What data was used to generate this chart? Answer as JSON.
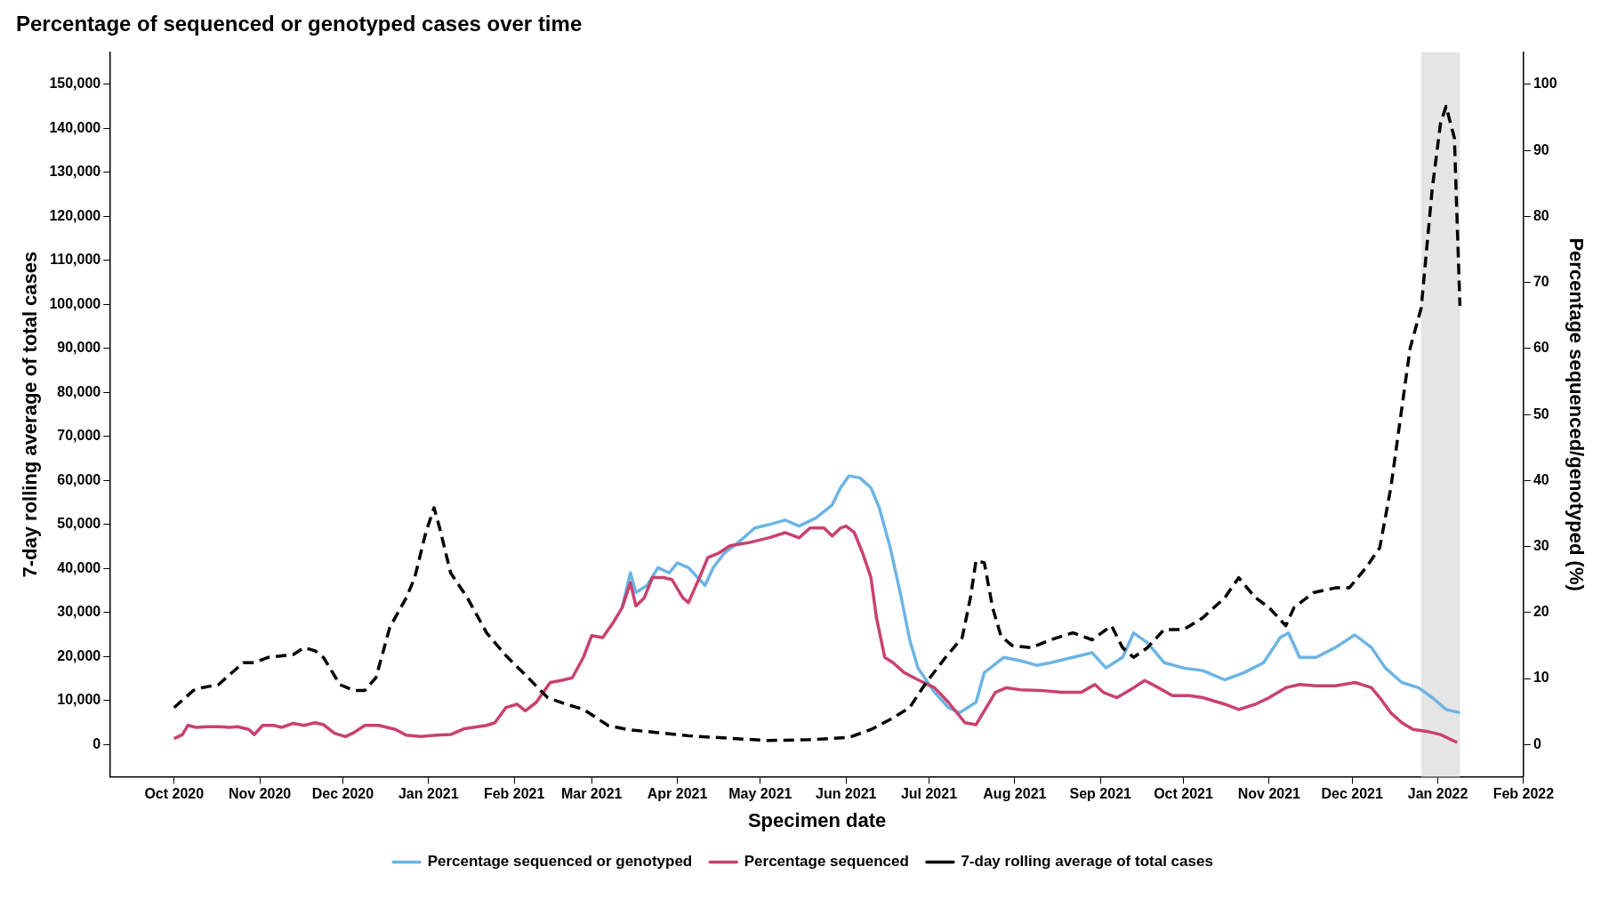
{
  "chart_data": {
    "type": "line",
    "title": "Percentage of sequenced or genotyped cases over time",
    "xlabel": "Specimen date",
    "ylabel": "7-day rolling average of total cases",
    "y2label": "Percentage sequenced/genotyped (%)",
    "xlim": [
      "2020-09-08",
      "2022-02-01"
    ],
    "xticks": [
      {
        "value": "2020-10-01",
        "label": "Oct 2020"
      },
      {
        "value": "2020-11-01",
        "label": "Nov 2020"
      },
      {
        "value": "2020-12-01",
        "label": "Dec 2020"
      },
      {
        "value": "2021-01-01",
        "label": "Jan 2021"
      },
      {
        "value": "2021-02-01",
        "label": "Feb 2021"
      },
      {
        "value": "2021-03-01",
        "label": "Mar 2021"
      },
      {
        "value": "2021-04-01",
        "label": "Apr 2021"
      },
      {
        "value": "2021-05-01",
        "label": "May 2021"
      },
      {
        "value": "2021-06-01",
        "label": "Jun 2021"
      },
      {
        "value": "2021-07-01",
        "label": "Jul 2021"
      },
      {
        "value": "2021-08-01",
        "label": "Aug 2021"
      },
      {
        "value": "2021-09-01",
        "label": "Sep 2021"
      },
      {
        "value": "2021-10-01",
        "label": "Oct 2021"
      },
      {
        "value": "2021-11-01",
        "label": "Nov 2021"
      },
      {
        "value": "2021-12-01",
        "label": "Dec 2021"
      },
      {
        "value": "2022-01-01",
        "label": "Jan 2022"
      },
      {
        "value": "2022-02-01",
        "label": "Feb 2022"
      }
    ],
    "ylim": [
      -7300,
      157300
    ],
    "yticks": [
      0,
      {
        "value": 10000,
        "label": "10,000"
      },
      {
        "value": 20000,
        "label": "20,000"
      },
      {
        "value": 30000,
        "label": "30,000"
      },
      {
        "value": 40000,
        "label": "40,000"
      },
      {
        "value": 50000,
        "label": "50,000"
      },
      {
        "value": 60000,
        "label": "60,000"
      },
      {
        "value": 70000,
        "label": "70,000"
      },
      {
        "value": 80000,
        "label": "80,000"
      },
      {
        "value": 90000,
        "label": "90,000"
      },
      {
        "value": 100000,
        "label": "100,000"
      },
      {
        "value": 110000,
        "label": "110,000"
      },
      {
        "value": 120000,
        "label": "120,000"
      },
      {
        "value": 130000,
        "label": "130,000"
      },
      {
        "value": 140000,
        "label": "140,000"
      },
      {
        "value": 150000,
        "label": "150,000"
      }
    ],
    "y2lim": [
      -4.87,
      104.87
    ],
    "y2ticks": [
      0,
      10,
      20,
      30,
      40,
      50,
      60,
      70,
      80,
      90,
      100
    ],
    "grid": false,
    "legend": "bottom",
    "marker": "none",
    "bands": [
      {
        "axis": "x",
        "from": "2021-12-26",
        "to": "2022-01-09",
        "color": "#e5e5e5"
      }
    ],
    "series": [
      {
        "name": "Percentage sequenced or genotyped",
        "color": "#6cb4e4",
        "axis": "y2",
        "line_style": "solid",
        "x": [
          "2021-03-12",
          "2021-03-15",
          "2021-03-17",
          "2021-03-21",
          "2021-03-25",
          "2021-03-29",
          "2021-04-01",
          "2021-04-05",
          "2021-04-11",
          "2021-04-14",
          "2021-04-18",
          "2021-04-23",
          "2021-04-29",
          "2021-05-04",
          "2021-05-10",
          "2021-05-15",
          "2021-05-21",
          "2021-05-27",
          "2021-05-30",
          "2021-06-02",
          "2021-06-06",
          "2021-06-10",
          "2021-06-13",
          "2021-06-17",
          "2021-06-21",
          "2021-06-24",
          "2021-06-27",
          "2021-07-03",
          "2021-07-08",
          "2021-07-12",
          "2021-07-18",
          "2021-07-21",
          "2021-07-28",
          "2021-08-03",
          "2021-08-09",
          "2021-08-14",
          "2021-08-22",
          "2021-08-29",
          "2021-09-03",
          "2021-09-09",
          "2021-09-13",
          "2021-09-18",
          "2021-09-24",
          "2021-10-01",
          "2021-10-08",
          "2021-10-16",
          "2021-10-23",
          "2021-10-30",
          "2021-11-05",
          "2021-11-08",
          "2021-11-12",
          "2021-11-18",
          "2021-11-25",
          "2021-12-02",
          "2021-12-08",
          "2021-12-13",
          "2021-12-19",
          "2021-12-25",
          "2021-12-30",
          "2022-01-04",
          "2022-01-09"
        ],
        "values": [
          20.7,
          26.0,
          23.0,
          24.1,
          26.8,
          26.0,
          27.5,
          26.8,
          24.1,
          26.8,
          29.0,
          30.6,
          32.8,
          33.3,
          34.0,
          33.1,
          34.3,
          36.3,
          38.9,
          40.7,
          40.4,
          38.9,
          35.9,
          29.8,
          22.2,
          15.9,
          11.6,
          7.9,
          5.6,
          4.8,
          6.4,
          10.9,
          13.2,
          12.7,
          12.0,
          12.4,
          13.2,
          13.9,
          11.6,
          13.2,
          16.9,
          15.4,
          12.4,
          11.6,
          11.2,
          9.8,
          10.9,
          12.4,
          16.2,
          16.9,
          13.2,
          13.2,
          14.7,
          16.6,
          14.7,
          11.6,
          9.4,
          8.6,
          7.1,
          5.3,
          4.8
        ]
      },
      {
        "name": "Percentage sequenced",
        "color": "#c9416e",
        "axis": "y2",
        "line_style": "solid",
        "x": [
          "2020-10-01",
          "2020-10-04",
          "2020-10-06",
          "2020-10-09",
          "2020-10-13",
          "2020-10-17",
          "2020-10-21",
          "2020-10-24",
          "2020-10-28",
          "2020-10-30",
          "2020-11-02",
          "2020-11-06",
          "2020-11-09",
          "2020-11-13",
          "2020-11-17",
          "2020-11-21",
          "2020-11-24",
          "2020-11-28",
          "2020-12-02",
          "2020-12-05",
          "2020-12-09",
          "2020-12-14",
          "2020-12-20",
          "2020-12-24",
          "2020-12-29",
          "2021-01-04",
          "2021-01-09",
          "2021-01-14",
          "2021-01-22",
          "2021-01-25",
          "2021-01-29",
          "2021-02-02",
          "2021-02-05",
          "2021-02-09",
          "2021-02-14",
          "2021-02-18",
          "2021-02-22",
          "2021-02-26",
          "2021-03-01",
          "2021-03-05",
          "2021-03-09",
          "2021-03-12",
          "2021-03-15",
          "2021-03-17",
          "2021-03-20",
          "2021-03-23",
          "2021-03-27",
          "2021-03-30",
          "2021-04-03",
          "2021-04-05",
          "2021-04-09",
          "2021-04-12",
          "2021-04-16",
          "2021-04-20",
          "2021-04-27",
          "2021-05-04",
          "2021-05-10",
          "2021-05-15",
          "2021-05-19",
          "2021-05-24",
          "2021-05-27",
          "2021-05-30",
          "2021-06-01",
          "2021-06-04",
          "2021-06-07",
          "2021-06-10",
          "2021-06-12",
          "2021-06-15",
          "2021-06-18",
          "2021-06-22",
          "2021-06-27",
          "2021-07-03",
          "2021-07-08",
          "2021-07-14",
          "2021-07-18",
          "2021-07-21",
          "2021-07-25",
          "2021-07-29",
          "2021-08-03",
          "2021-08-10",
          "2021-08-18",
          "2021-08-25",
          "2021-08-30",
          "2021-09-02",
          "2021-09-07",
          "2021-09-13",
          "2021-09-17",
          "2021-09-22",
          "2021-09-27",
          "2021-10-03",
          "2021-10-08",
          "2021-10-16",
          "2021-10-21",
          "2021-10-27",
          "2021-11-01",
          "2021-11-07",
          "2021-11-12",
          "2021-11-18",
          "2021-11-25",
          "2021-12-02",
          "2021-12-08",
          "2021-12-11",
          "2021-12-15",
          "2021-12-19",
          "2021-12-23",
          "2021-12-28",
          "2022-01-02",
          "2022-01-08"
        ],
        "values": [
          0.9,
          1.5,
          2.9,
          2.6,
          2.7,
          2.7,
          2.6,
          2.7,
          2.3,
          1.5,
          2.9,
          2.9,
          2.6,
          3.2,
          2.9,
          3.3,
          3.0,
          1.7,
          1.2,
          1.8,
          2.9,
          2.9,
          2.3,
          1.4,
          1.2,
          1.4,
          1.5,
          2.4,
          2.9,
          3.3,
          5.6,
          6.1,
          5.1,
          6.4,
          9.4,
          9.7,
          10.1,
          13.2,
          16.5,
          16.2,
          18.6,
          20.7,
          24.5,
          21.0,
          22.2,
          25.3,
          25.3,
          25.0,
          22.2,
          21.5,
          25.3,
          28.3,
          29.0,
          30.1,
          30.6,
          31.3,
          32.1,
          31.3,
          32.8,
          32.8,
          31.6,
          32.8,
          33.1,
          32.1,
          29.0,
          25.3,
          19.2,
          13.2,
          12.4,
          10.9,
          9.8,
          8.6,
          6.4,
          3.3,
          3.0,
          5.1,
          7.9,
          8.6,
          8.3,
          8.2,
          7.9,
          7.9,
          9.1,
          7.9,
          7.1,
          8.6,
          9.7,
          8.6,
          7.4,
          7.4,
          7.1,
          6.1,
          5.3,
          6.1,
          7.1,
          8.6,
          9.1,
          8.9,
          8.9,
          9.4,
          8.6,
          7.1,
          4.8,
          3.3,
          2.3,
          2.0,
          1.5,
          0.3
        ]
      },
      {
        "name": "7-day rolling average of total cases",
        "color": "#000000",
        "line_style": "dashed",
        "x": [
          "2020-10-01",
          "2020-10-08",
          "2020-10-11",
          "2020-10-17",
          "2020-10-26",
          "2020-10-30",
          "2020-11-04",
          "2020-11-13",
          "2020-11-17",
          "2020-11-21",
          "2020-11-24",
          "2020-11-30",
          "2020-12-05",
          "2020-12-09",
          "2020-12-13",
          "2020-12-18",
          "2020-12-24",
          "2020-12-27",
          "2020-12-31",
          "2021-01-03",
          "2021-01-05",
          "2021-01-09",
          "2021-01-15",
          "2021-01-22",
          "2021-01-29",
          "2021-02-06",
          "2021-02-13",
          "2021-02-20",
          "2021-02-26",
          "2021-03-07",
          "2021-03-14",
          "2021-03-25",
          "2021-04-05",
          "2021-04-20",
          "2021-05-04",
          "2021-05-19",
          "2021-06-02",
          "2021-06-10",
          "2021-06-17",
          "2021-06-24",
          "2021-06-30",
          "2021-07-07",
          "2021-07-13",
          "2021-07-16",
          "2021-07-18",
          "2021-07-21",
          "2021-07-24",
          "2021-07-27",
          "2021-07-31",
          "2021-08-07",
          "2021-08-14",
          "2021-08-22",
          "2021-08-29",
          "2021-09-05",
          "2021-09-09",
          "2021-09-13",
          "2021-09-18",
          "2021-09-24",
          "2021-10-01",
          "2021-10-08",
          "2021-10-16",
          "2021-10-21",
          "2021-10-27",
          "2021-11-01",
          "2021-11-07",
          "2021-11-10",
          "2021-11-17",
          "2021-11-25",
          "2021-11-30",
          "2021-12-06",
          "2021-12-11",
          "2021-12-15",
          "2021-12-19",
          "2021-12-22",
          "2021-12-26",
          "2021-12-30",
          "2022-01-02",
          "2022-01-04",
          "2022-01-07",
          "2022-01-09"
        ],
        "values": [
          8400,
          12300,
          12900,
          13600,
          18600,
          18600,
          19800,
          20400,
          22000,
          21300,
          19800,
          13600,
          12300,
          12300,
          15200,
          26600,
          33400,
          37900,
          48100,
          53800,
          49300,
          39000,
          33400,
          25400,
          20200,
          15200,
          10700,
          9100,
          8000,
          4300,
          3400,
          2700,
          2000,
          1400,
          900,
          1100,
          1600,
          3400,
          5700,
          8400,
          14100,
          19800,
          24300,
          33400,
          41800,
          41300,
          31100,
          24700,
          22500,
          22000,
          23800,
          25400,
          23800,
          27000,
          22000,
          19800,
          22000,
          26100,
          26100,
          28800,
          33400,
          37900,
          33400,
          31100,
          27000,
          31100,
          34500,
          35600,
          35600,
          40200,
          44700,
          58300,
          76500,
          90100,
          99200,
          126400,
          141200,
          145000,
          137800,
          99700
        ]
      }
    ]
  }
}
